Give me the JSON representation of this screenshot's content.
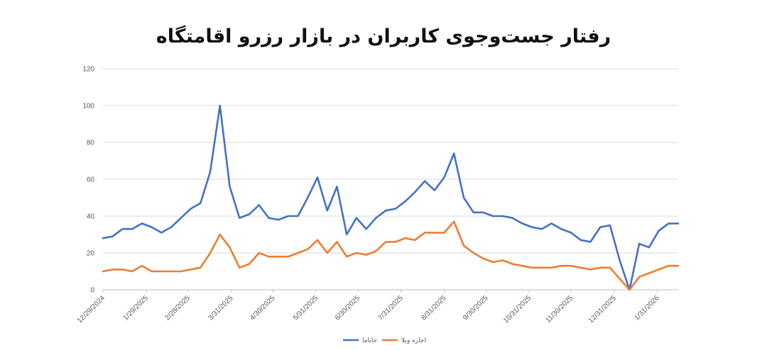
{
  "chart_data": {
    "type": "line",
    "title": "رفتار جست‌وجوی کاربران در بازار رزرو اقامتگاه",
    "xlabel": "",
    "ylabel": "",
    "ylim": [
      0,
      120
    ],
    "yticks": [
      0,
      20,
      40,
      60,
      80,
      100,
      120
    ],
    "xlim": [
      "12/29/2024",
      "2/15/2026"
    ],
    "xticks": [
      "12/29/2024",
      "1/29/2025",
      "2/28/2025",
      "3/31/2025",
      "4/30/2025",
      "5/31/2025",
      "6/30/2025",
      "7/31/2025",
      "8/31/2025",
      "9/30/2025",
      "10/31/2025",
      "11/30/2025",
      "12/31/2025",
      "1/31/2026"
    ],
    "grid": true,
    "legend": "bottom",
    "x": [
      "12/29/2024",
      "1/5/2025",
      "1/12/2025",
      "1/19/2025",
      "1/26/2025",
      "2/2/2025",
      "2/9/2025",
      "2/16/2025",
      "2/23/2025",
      "3/2/2025",
      "3/9/2025",
      "3/16/2025",
      "3/23/2025",
      "3/30/2025",
      "4/6/2025",
      "4/13/2025",
      "4/20/2025",
      "4/27/2025",
      "5/4/2025",
      "5/11/2025",
      "5/18/2025",
      "5/25/2025",
      "6/1/2025",
      "6/8/2025",
      "6/15/2025",
      "6/22/2025",
      "6/29/2025",
      "7/6/2025",
      "7/13/2025",
      "7/20/2025",
      "7/27/2025",
      "8/3/2025",
      "8/10/2025",
      "8/17/2025",
      "8/24/2025",
      "8/31/2025",
      "9/7/2025",
      "9/14/2025",
      "9/21/2025",
      "9/28/2025",
      "10/5/2025",
      "10/12/2025",
      "10/19/2025",
      "10/26/2025",
      "11/2/2025",
      "11/9/2025",
      "11/16/2025",
      "11/23/2025",
      "11/30/2025",
      "12/7/2025",
      "12/14/2025",
      "12/21/2025",
      "12/28/2025",
      "1/4/2026",
      "1/11/2026",
      "1/18/2026",
      "1/25/2026",
      "2/1/2026",
      "2/8/2026",
      "2/15/2026"
    ],
    "series": [
      {
        "name": "جاباما",
        "color": "#4472C4",
        "values": [
          28,
          29,
          33,
          33,
          36,
          34,
          31,
          34,
          39,
          44,
          47,
          64,
          100,
          56,
          39,
          41,
          46,
          39,
          38,
          40,
          40,
          50,
          61,
          43,
          56,
          30,
          39,
          33,
          39,
          43,
          44,
          48,
          53,
          59,
          54,
          61,
          74,
          50,
          42,
          42,
          40,
          40,
          39,
          36,
          34,
          33,
          36,
          33,
          31,
          27,
          26,
          34,
          35,
          16,
          0,
          25,
          23,
          32,
          36,
          36
        ]
      },
      {
        "name": "اجاره ویلا",
        "color": "#ED7D31",
        "values": [
          10,
          11,
          11,
          10,
          13,
          10,
          10,
          10,
          10,
          11,
          12,
          20,
          30,
          23,
          12,
          14,
          20,
          18,
          18,
          18,
          20,
          22,
          27,
          20,
          26,
          18,
          20,
          19,
          21,
          26,
          26,
          28,
          27,
          31,
          31,
          31,
          37,
          24,
          20,
          17,
          15,
          16,
          14,
          13,
          12,
          12,
          12,
          13,
          13,
          12,
          11,
          12,
          12,
          6,
          0,
          7,
          9,
          11,
          13,
          13
        ]
      }
    ]
  }
}
